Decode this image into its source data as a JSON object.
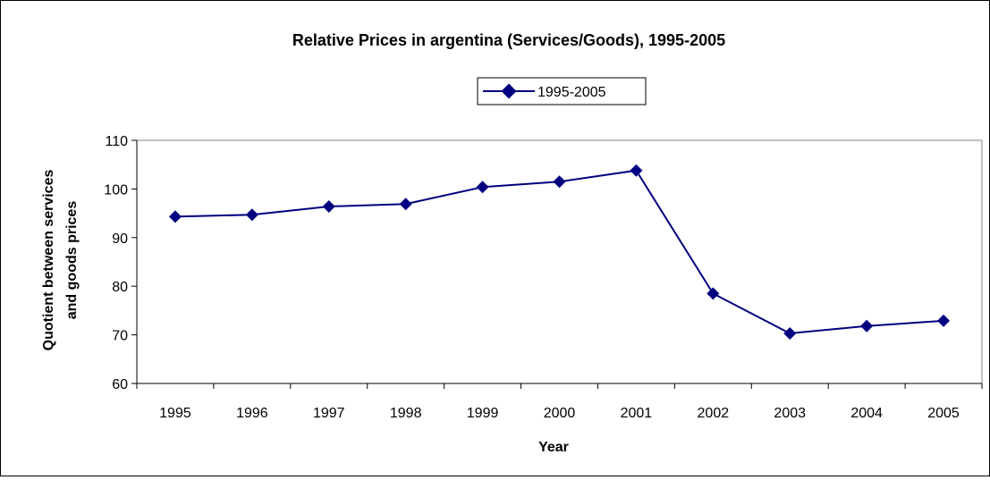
{
  "chart_data": {
    "type": "line",
    "title": "Relative Prices in argentina (Services/Goods), 1995-2005",
    "xlabel": "Year",
    "ylabel_lines": [
      "Quotient between services",
      "and goods prices"
    ],
    "categories": [
      "1995",
      "1996",
      "1997",
      "1998",
      "1999",
      "2000",
      "2001",
      "2002",
      "2003",
      "2004",
      "2005"
    ],
    "series": [
      {
        "name": "1995-2005",
        "values": [
          94.3,
          94.7,
          96.4,
          96.9,
          100.4,
          101.5,
          103.8,
          78.5,
          70.3,
          71.8,
          72.9
        ]
      }
    ],
    "ylim": [
      60,
      110
    ],
    "yticks": [
      60,
      70,
      80,
      90,
      100,
      110
    ],
    "grid": false,
    "legend_position": "top-center",
    "colors": {
      "series": "#000080",
      "plot_border": "#808080",
      "axis": "#000000"
    }
  }
}
